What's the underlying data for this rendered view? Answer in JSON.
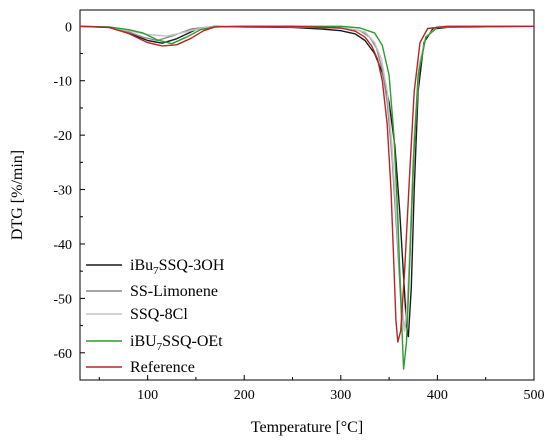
{
  "chart_data": {
    "type": "line",
    "xlabel": "Temperature [°C]",
    "ylabel": "DTG [%/min]",
    "xlim": [
      30,
      500
    ],
    "ylim": [
      -65,
      3
    ],
    "xticks": [
      100,
      200,
      300,
      400,
      500
    ],
    "yticks": [
      0,
      -10,
      -20,
      -30,
      -40,
      -50,
      -60
    ],
    "legend_position": "bottom-left",
    "grid": false,
    "series": [
      {
        "name": "iBu7SSQ-3OH",
        "name_main": "iBu",
        "name_sub": "7",
        "name_tail": "SSQ-3OH",
        "color": "#1a1a1a",
        "points": [
          [
            30,
            0
          ],
          [
            60,
            -0.2
          ],
          [
            80,
            -1.2
          ],
          [
            100,
            -2.6
          ],
          [
            115,
            -3.1
          ],
          [
            130,
            -2.3
          ],
          [
            150,
            -0.6
          ],
          [
            170,
            0
          ],
          [
            200,
            -0.1
          ],
          [
            250,
            -0.2
          ],
          [
            280,
            -0.5
          ],
          [
            300,
            -0.8
          ],
          [
            315,
            -1.4
          ],
          [
            325,
            -2.6
          ],
          [
            335,
            -5
          ],
          [
            343,
            -8.5
          ],
          [
            350,
            -14
          ],
          [
            356,
            -22
          ],
          [
            361,
            -34
          ],
          [
            365,
            -46
          ],
          [
            368,
            -55
          ],
          [
            370,
            -57
          ],
          [
            373,
            -48
          ],
          [
            376,
            -30
          ],
          [
            380,
            -12
          ],
          [
            386,
            -3
          ],
          [
            395,
            -0.5
          ],
          [
            420,
            0
          ],
          [
            500,
            0
          ]
        ]
      },
      {
        "name": "SS-Limonene",
        "color": "#8a8a8a",
        "points": [
          [
            30,
            0
          ],
          [
            60,
            -0.1
          ],
          [
            80,
            -1
          ],
          [
            95,
            -2
          ],
          [
            110,
            -2.6
          ],
          [
            125,
            -1.8
          ],
          [
            145,
            -0.5
          ],
          [
            170,
            0
          ],
          [
            250,
            -0.1
          ],
          [
            300,
            -0.3
          ],
          [
            320,
            -0.8
          ],
          [
            330,
            -2
          ],
          [
            337,
            -4
          ],
          [
            343,
            -8
          ],
          [
            348,
            -14
          ],
          [
            353,
            -24
          ],
          [
            358,
            -38
          ],
          [
            362,
            -50
          ],
          [
            366,
            -56
          ],
          [
            369,
            -52
          ],
          [
            372,
            -40
          ],
          [
            376,
            -22
          ],
          [
            381,
            -8
          ],
          [
            388,
            -2
          ],
          [
            400,
            -0.2
          ],
          [
            500,
            0
          ]
        ]
      },
      {
        "name": "SSQ-8Cl",
        "color": "#c4c4c4",
        "points": [
          [
            30,
            0
          ],
          [
            60,
            -0.1
          ],
          [
            80,
            -0.8
          ],
          [
            100,
            -1.5
          ],
          [
            120,
            -1.8
          ],
          [
            140,
            -1
          ],
          [
            160,
            -0.2
          ],
          [
            180,
            0
          ],
          [
            250,
            0
          ],
          [
            300,
            -0.2
          ],
          [
            325,
            -1
          ],
          [
            335,
            -3
          ],
          [
            342,
            -6
          ],
          [
            348,
            -12
          ],
          [
            353,
            -22
          ],
          [
            358,
            -36
          ],
          [
            362,
            -48
          ],
          [
            366,
            -56
          ],
          [
            369,
            -50
          ],
          [
            372,
            -38
          ],
          [
            376,
            -20
          ],
          [
            381,
            -7
          ],
          [
            388,
            -2
          ],
          [
            400,
            0
          ],
          [
            500,
            0
          ]
        ]
      },
      {
        "name": "iBU7SSQ-OEt",
        "name_main": "iBU",
        "name_sub": "7",
        "name_tail": "SSQ-OEt",
        "color": "#2e9b2e",
        "points": [
          [
            30,
            0
          ],
          [
            60,
            -0.1
          ],
          [
            80,
            -0.6
          ],
          [
            95,
            -1.2
          ],
          [
            110,
            -2.5
          ],
          [
            125,
            -3.2
          ],
          [
            140,
            -2
          ],
          [
            155,
            -0.6
          ],
          [
            170,
            -0.1
          ],
          [
            200,
            0
          ],
          [
            250,
            0
          ],
          [
            300,
            0
          ],
          [
            320,
            -0.3
          ],
          [
            335,
            -1.2
          ],
          [
            343,
            -3.5
          ],
          [
            350,
            -9
          ],
          [
            355,
            -20
          ],
          [
            359,
            -35
          ],
          [
            362,
            -50
          ],
          [
            365,
            -63
          ],
          [
            368,
            -58
          ],
          [
            371,
            -45
          ],
          [
            375,
            -25
          ],
          [
            380,
            -9
          ],
          [
            388,
            -2
          ],
          [
            400,
            -0.2
          ],
          [
            500,
            0
          ]
        ]
      },
      {
        "name": "Reference",
        "color": "#b52525",
        "points": [
          [
            30,
            0
          ],
          [
            60,
            -0.2
          ],
          [
            80,
            -1.3
          ],
          [
            100,
            -3
          ],
          [
            115,
            -3.6
          ],
          [
            130,
            -3.4
          ],
          [
            145,
            -2.2
          ],
          [
            158,
            -0.8
          ],
          [
            170,
            -0.1
          ],
          [
            200,
            0
          ],
          [
            250,
            0
          ],
          [
            300,
            -0.3
          ],
          [
            315,
            -0.9
          ],
          [
            325,
            -2
          ],
          [
            332,
            -3.6
          ],
          [
            338,
            -6
          ],
          [
            343,
            -10
          ],
          [
            348,
            -18
          ],
          [
            352,
            -30
          ],
          [
            355,
            -44
          ],
          [
            357,
            -54
          ],
          [
            359,
            -58
          ],
          [
            362,
            -56
          ],
          [
            366,
            -45
          ],
          [
            371,
            -28
          ],
          [
            376,
            -12
          ],
          [
            382,
            -3
          ],
          [
            390,
            -0.4
          ],
          [
            410,
            0
          ],
          [
            500,
            0
          ]
        ]
      }
    ]
  }
}
